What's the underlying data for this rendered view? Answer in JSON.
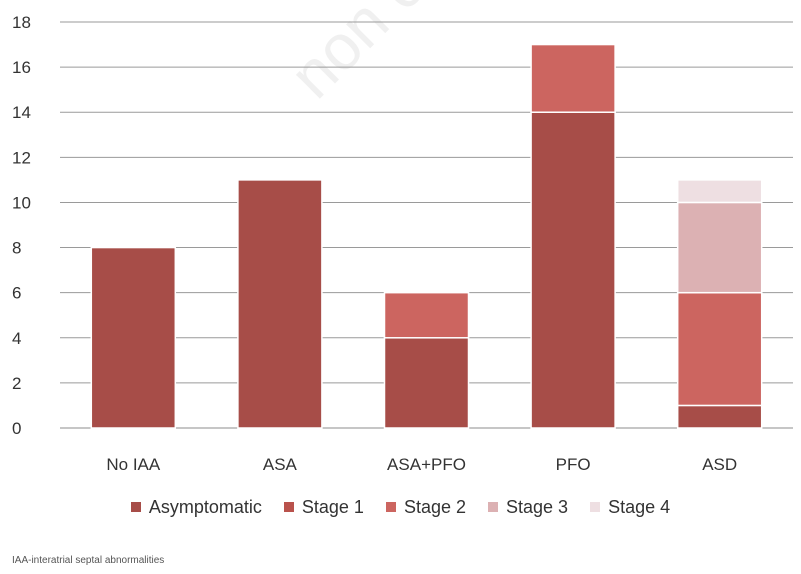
{
  "chart_data": {
    "type": "bar",
    "stacked": true,
    "categories": [
      "No IAA",
      "ASA",
      "ASA+PFO",
      "PFO",
      "ASD"
    ],
    "series": [
      {
        "name": "Asymptomatic",
        "color": "#a74d48",
        "values": [
          8,
          11,
          4,
          14,
          1
        ]
      },
      {
        "name": "Stage 1",
        "color": "#b9524c",
        "values": [
          0,
          0,
          0,
          0,
          0
        ]
      },
      {
        "name": "Stage 2",
        "color": "#cc6560",
        "values": [
          0,
          0,
          2,
          3,
          5
        ]
      },
      {
        "name": "Stage 3",
        "color": "#dcb1b3",
        "values": [
          0,
          0,
          0,
          0,
          4
        ]
      },
      {
        "name": "Stage 4",
        "color": "#eedfe2",
        "values": [
          0,
          0,
          0,
          0,
          1
        ]
      }
    ],
    "ylim": [
      0,
      18
    ],
    "yticks": [
      0,
      2,
      4,
      6,
      8,
      10,
      12,
      14,
      16,
      18
    ],
    "grid": true,
    "legend_position": "bottom",
    "xlabel": "",
    "ylabel": "",
    "title": ""
  },
  "footnote": "IAA-interatrial septal abnormalities",
  "watermark": "non c"
}
